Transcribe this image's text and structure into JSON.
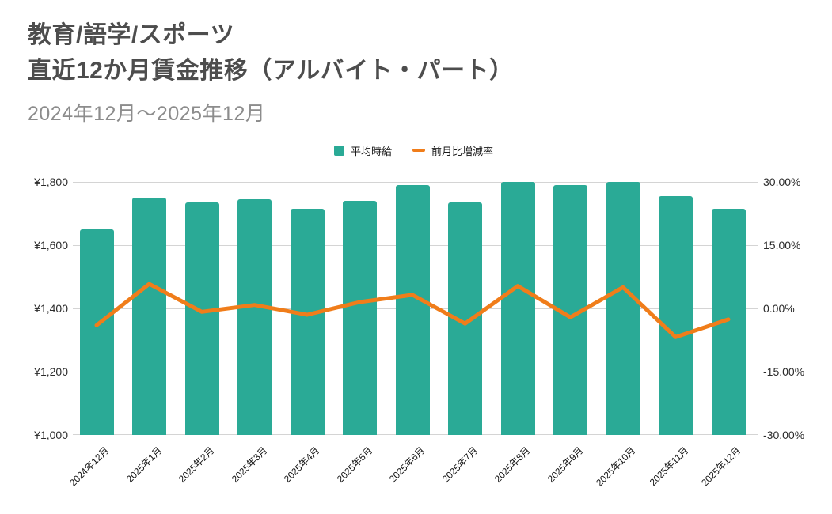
{
  "header": {
    "title_line1": "教育/語学/スポーツ",
    "title_line2": "直近12か月賃金推移（アルバイト・パート）",
    "subtitle": "2024年12月～2025年12月"
  },
  "legend": {
    "position": "top-center",
    "items": [
      {
        "label": "平均時給",
        "marker": "square",
        "color": "#2aaa96"
      },
      {
        "label": "前月比増減率",
        "marker": "dash",
        "color": "#f07d1a"
      }
    ]
  },
  "colors": {
    "bar": "#2aaa96",
    "line": "#f07d1a",
    "title": "#4d4d4d",
    "subtitle": "#8c8c8c",
    "grid": "#d4d4d4",
    "tick_text": "#2b2b2b",
    "background": "#ffffff"
  },
  "chart_data": {
    "type": "bar",
    "subtype": "combo-bar-line-dual-axis",
    "grid": true,
    "title": "教育/語学/スポーツ 直近12か月賃金推移（アルバイト・パート）",
    "categories": [
      "2024年12月",
      "2025年1月",
      "2025年2月",
      "2025年3月",
      "2025年4月",
      "2025年5月",
      "2025年6月",
      "2025年7月",
      "2025年8月",
      "2025年9月",
      "2025年10月",
      "2025年11月",
      "2025年12月"
    ],
    "series": [
      {
        "name": "平均時給",
        "type": "bar",
        "axis": "left",
        "unit": "JPY",
        "values": [
          1650,
          1750,
          1735,
          1745,
          1715,
          1740,
          1790,
          1735,
          1800,
          1790,
          1800,
          1755,
          1715
        ]
      },
      {
        "name": "前月比増減率",
        "type": "line",
        "axis": "right",
        "unit": "percent",
        "values": [
          -4.0,
          5.8,
          -0.8,
          0.8,
          -1.5,
          1.5,
          3.2,
          -3.6,
          5.3,
          -2.1,
          5.0,
          -6.8,
          -2.6
        ]
      }
    ],
    "left_axis": {
      "min": 1000,
      "max": 1800,
      "tick_labels": [
        "¥1,800",
        "¥1,600",
        "¥1,400",
        "¥1,200",
        "¥1,000"
      ]
    },
    "right_axis": {
      "min": -30,
      "max": 30,
      "tick_labels": [
        "30.00%",
        "15.00%",
        "0.00%",
        "-15.00%",
        "-30.00%"
      ]
    }
  }
}
